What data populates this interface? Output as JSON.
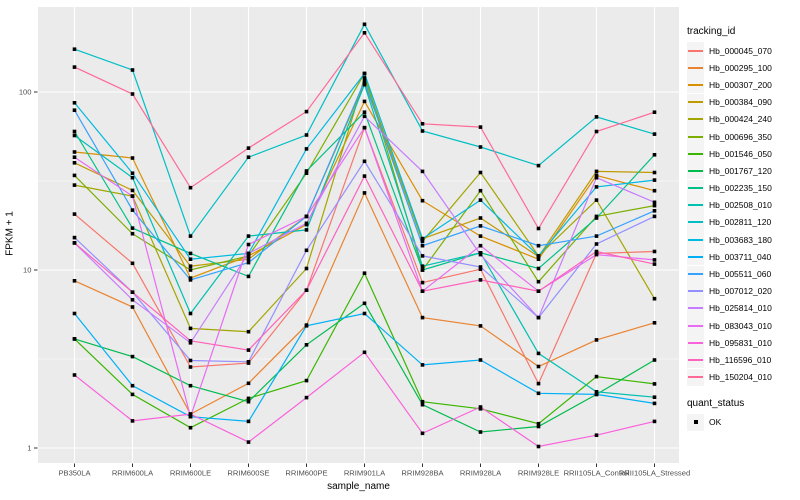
{
  "chart_data": {
    "type": "line",
    "title": "",
    "xlabel": "sample_name",
    "ylabel": "FPKM + 1",
    "y_scale": "log10",
    "ylim": [
      1,
      300
    ],
    "y_ticks": [
      1,
      10,
      100
    ],
    "grid": "on",
    "panel_bg": "#EBEBEB",
    "grid_color": "#FFFFFF",
    "point_shape": "filled-black-square",
    "categories": [
      "PB350LA",
      "RRIM600LA",
      "RRIM600LE",
      "RRIM600SE",
      "RRIM600PE",
      "RRIM901LA",
      "RRIM928BA",
      "RRIM928LA",
      "RRIM928LE",
      "RRII105LA_Control",
      "RRII105LA_Stressed"
    ],
    "legend": {
      "title": "tracking_id",
      "position": "right"
    },
    "series": [
      {
        "name": "Hb_000045_070",
        "color": "#F8766D",
        "values": [
          20.6,
          10.9,
          2.85,
          3.0,
          7.7,
          63,
          8.5,
          10.1,
          2.3,
          12.4,
          12.7
        ]
      },
      {
        "name": "Hb_000295_100",
        "color": "#EA8331",
        "values": [
          8.7,
          6.2,
          1.55,
          2.31,
          4.9,
          27.1,
          5.4,
          4.85,
          2.87,
          4.05,
          5.05
        ]
      },
      {
        "name": "Hb_000307_200",
        "color": "#D89000",
        "values": [
          46,
          42.6,
          9.0,
          12.0,
          18,
          88.6,
          24.5,
          15.5,
          11.5,
          34,
          27.9
        ]
      },
      {
        "name": "Hb_000384_090",
        "color": "#C09B00",
        "values": [
          40,
          28,
          10.5,
          11.5,
          20,
          112,
          15,
          19.6,
          11.9,
          35.8,
          35.3
        ]
      },
      {
        "name": "Hb_000424_240",
        "color": "#A3A500",
        "values": [
          30,
          26,
          4.7,
          4.5,
          10.2,
          120,
          14.5,
          35.3,
          12.0,
          24.7,
          6.9
        ]
      },
      {
        "name": "Hb_000696_350",
        "color": "#7CAE00",
        "values": [
          34,
          16,
          10.0,
          12.0,
          35,
          127,
          10.0,
          27.9,
          8.6,
          20,
          23
        ]
      },
      {
        "name": "Hb_001546_050",
        "color": "#39B600",
        "values": [
          4.1,
          2.0,
          1.3,
          1.9,
          2.39,
          9.6,
          1.82,
          1.66,
          1.37,
          2.52,
          2.29
        ]
      },
      {
        "name": "Hb_001767_120",
        "color": "#00BB4E",
        "values": [
          4.1,
          3.26,
          2.24,
          1.82,
          3.8,
          6.5,
          1.75,
          1.23,
          1.32,
          2.0,
          3.12
        ]
      },
      {
        "name": "Hb_002235_150",
        "color": "#00C087",
        "values": [
          60,
          17.2,
          12.4,
          9.2,
          36,
          77,
          10.0,
          12.5,
          10.2,
          19.6,
          44.4
        ]
      },
      {
        "name": "Hb_002508_010",
        "color": "#00C0B2",
        "values": [
          57,
          33,
          5.7,
          15.5,
          16.8,
          110,
          10.5,
          12.5,
          3.4,
          2.07,
          1.93
        ]
      },
      {
        "name": "Hb_002811_120",
        "color": "#00BFC4",
        "values": [
          174,
          133,
          15.5,
          43,
          57.3,
          240,
          60.4,
          49.1,
          38.6,
          72.5,
          58
        ]
      },
      {
        "name": "Hb_003683_180",
        "color": "#00BAE0",
        "values": [
          87,
          35,
          11.5,
          12.4,
          47.9,
          127,
          15.0,
          24.7,
          12.0,
          29.3,
          32
        ]
      },
      {
        "name": "Hb_003711_040",
        "color": "#00B0F6",
        "values": [
          5.7,
          2.24,
          1.5,
          1.41,
          4.86,
          5.7,
          2.93,
          3.12,
          2.03,
          2.0,
          1.78
        ]
      },
      {
        "name": "Hb_005511_060",
        "color": "#35A2FF",
        "values": [
          79,
          21.7,
          8.8,
          11.0,
          20,
          115,
          13.7,
          17.7,
          13.7,
          15.5,
          21.5
        ]
      },
      {
        "name": "Hb_007012_020",
        "color": "#9590FF",
        "values": [
          15.2,
          7.5,
          3.1,
          3.05,
          12.9,
          40.8,
          12.0,
          10.4,
          5.4,
          14.0,
          20.0
        ]
      },
      {
        "name": "Hb_025814_010",
        "color": "#C77CFF",
        "values": [
          14.2,
          6.8,
          3.9,
          12.4,
          18.3,
          73,
          35.8,
          12.2,
          5.4,
          33,
          24
        ]
      },
      {
        "name": "Hb_083043_010",
        "color": "#E76BF3",
        "values": [
          43,
          26,
          1.5,
          13.9,
          20,
          63,
          7.6,
          13.7,
          7.6,
          12.2,
          11.4
        ]
      },
      {
        "name": "Hb_095831_010",
        "color": "#FA62DB",
        "values": [
          2.57,
          1.42,
          1.55,
          1.08,
          1.92,
          3.45,
          1.21,
          1.7,
          1.02,
          1.18,
          1.41
        ]
      },
      {
        "name": "Hb_116596_010",
        "color": "#FF62BC",
        "values": [
          14.2,
          7.5,
          4.0,
          3.55,
          7.7,
          33.7,
          7.6,
          8.8,
          7.6,
          12.7,
          10.8
        ]
      },
      {
        "name": "Hb_150204_010",
        "color": "#FF6A98",
        "values": [
          138,
          97.5,
          29,
          48.4,
          77.6,
          215,
          66.3,
          63.5,
          17.1,
          60,
          77
        ]
      }
    ],
    "quant_status_legend": {
      "title": "quant_status",
      "items": [
        {
          "label": "OK",
          "shape": "black-square"
        }
      ]
    }
  }
}
